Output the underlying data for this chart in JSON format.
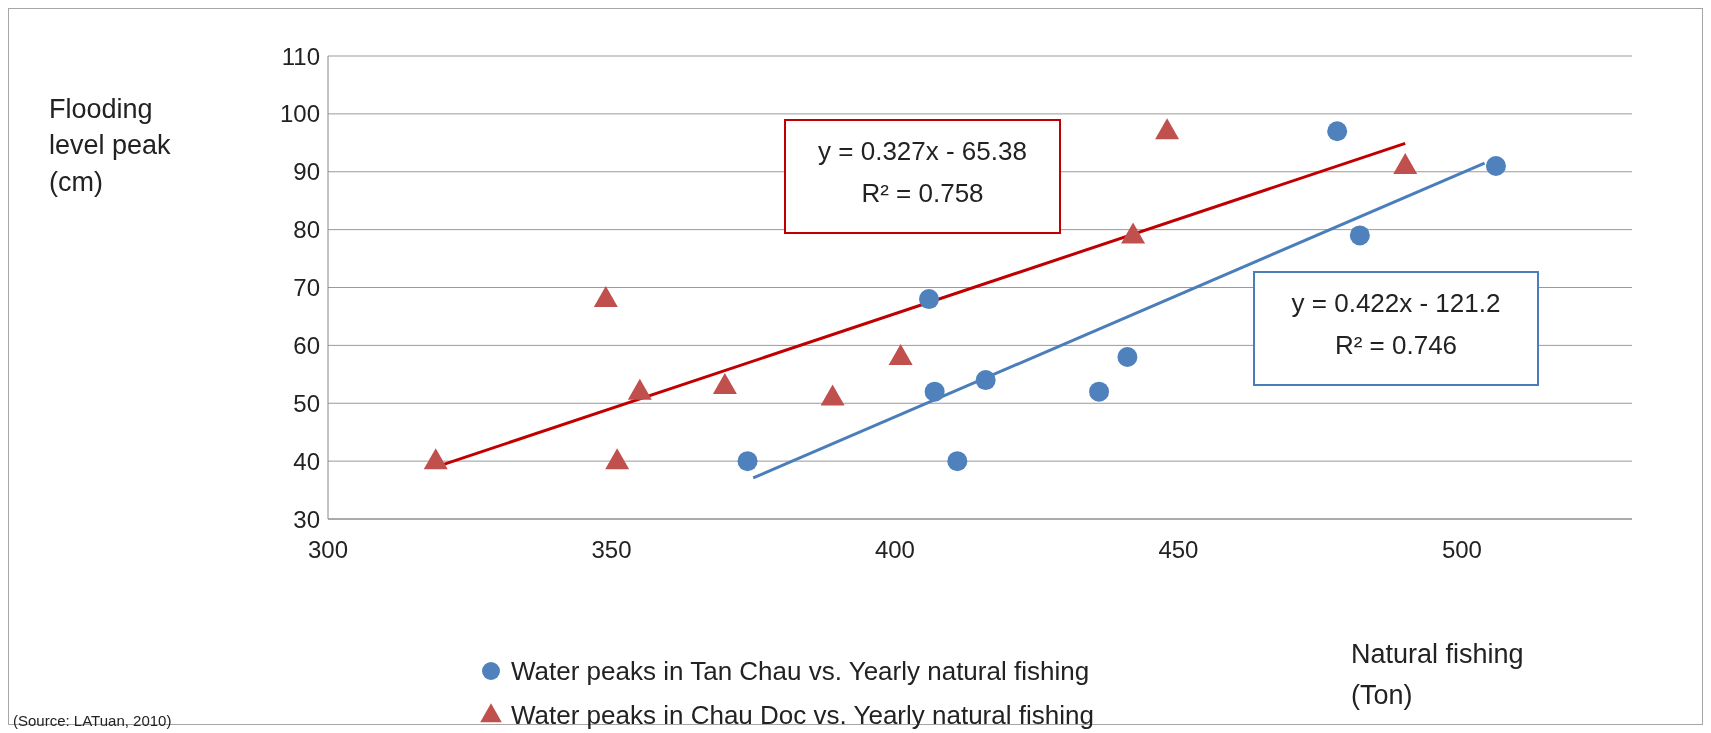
{
  "chart_data": {
    "type": "scatter",
    "xlabel": "Natural fishing\n(Ton)",
    "ylabel": "Flooding\nlevel peak\n(cm)",
    "xlim": [
      300,
      530
    ],
    "xticks": [
      300,
      350,
      400,
      450,
      500
    ],
    "ylim": [
      30,
      110
    ],
    "yticks": [
      30,
      40,
      50,
      60,
      70,
      80,
      90,
      100,
      110
    ],
    "grid": "y",
    "legend": "bottom",
    "series": [
      {
        "name": "Water peaks in Tan Chau vs. Yearly natural fishing",
        "color": "#4f81bd",
        "marker": "circle",
        "x": [
          374,
          406,
          407,
          416,
          411,
          436,
          441,
          478,
          482,
          506
        ],
        "values": [
          40,
          68,
          52,
          54,
          40,
          52,
          58,
          97,
          79,
          91
        ]
      },
      {
        "name": "Water peaks in Chau Doc vs. Yearly natural fishing",
        "color": "#c0504d",
        "marker": "triangle",
        "x": [
          319,
          349,
          351,
          355,
          370,
          389,
          401,
          442,
          448,
          490
        ],
        "values": [
          40,
          68,
          40,
          52,
          53,
          51,
          58,
          79,
          97,
          91
        ]
      },
      {
        "type": "line",
        "color": "#c00000",
        "x": [
          320,
          490
        ],
        "values": [
          39.3,
          94.9
        ]
      },
      {
        "type": "line",
        "color": "#4a7ebb",
        "x": [
          375,
          504
        ],
        "values": [
          37.1,
          91.5
        ]
      }
    ],
    "annotations": [
      "y = 0.327x - 65.38\nR² = 0.758",
      "y = 0.422x - 121.2\nR² = 0.746",
      "(Source: LATuan, 2010)"
    ]
  }
}
